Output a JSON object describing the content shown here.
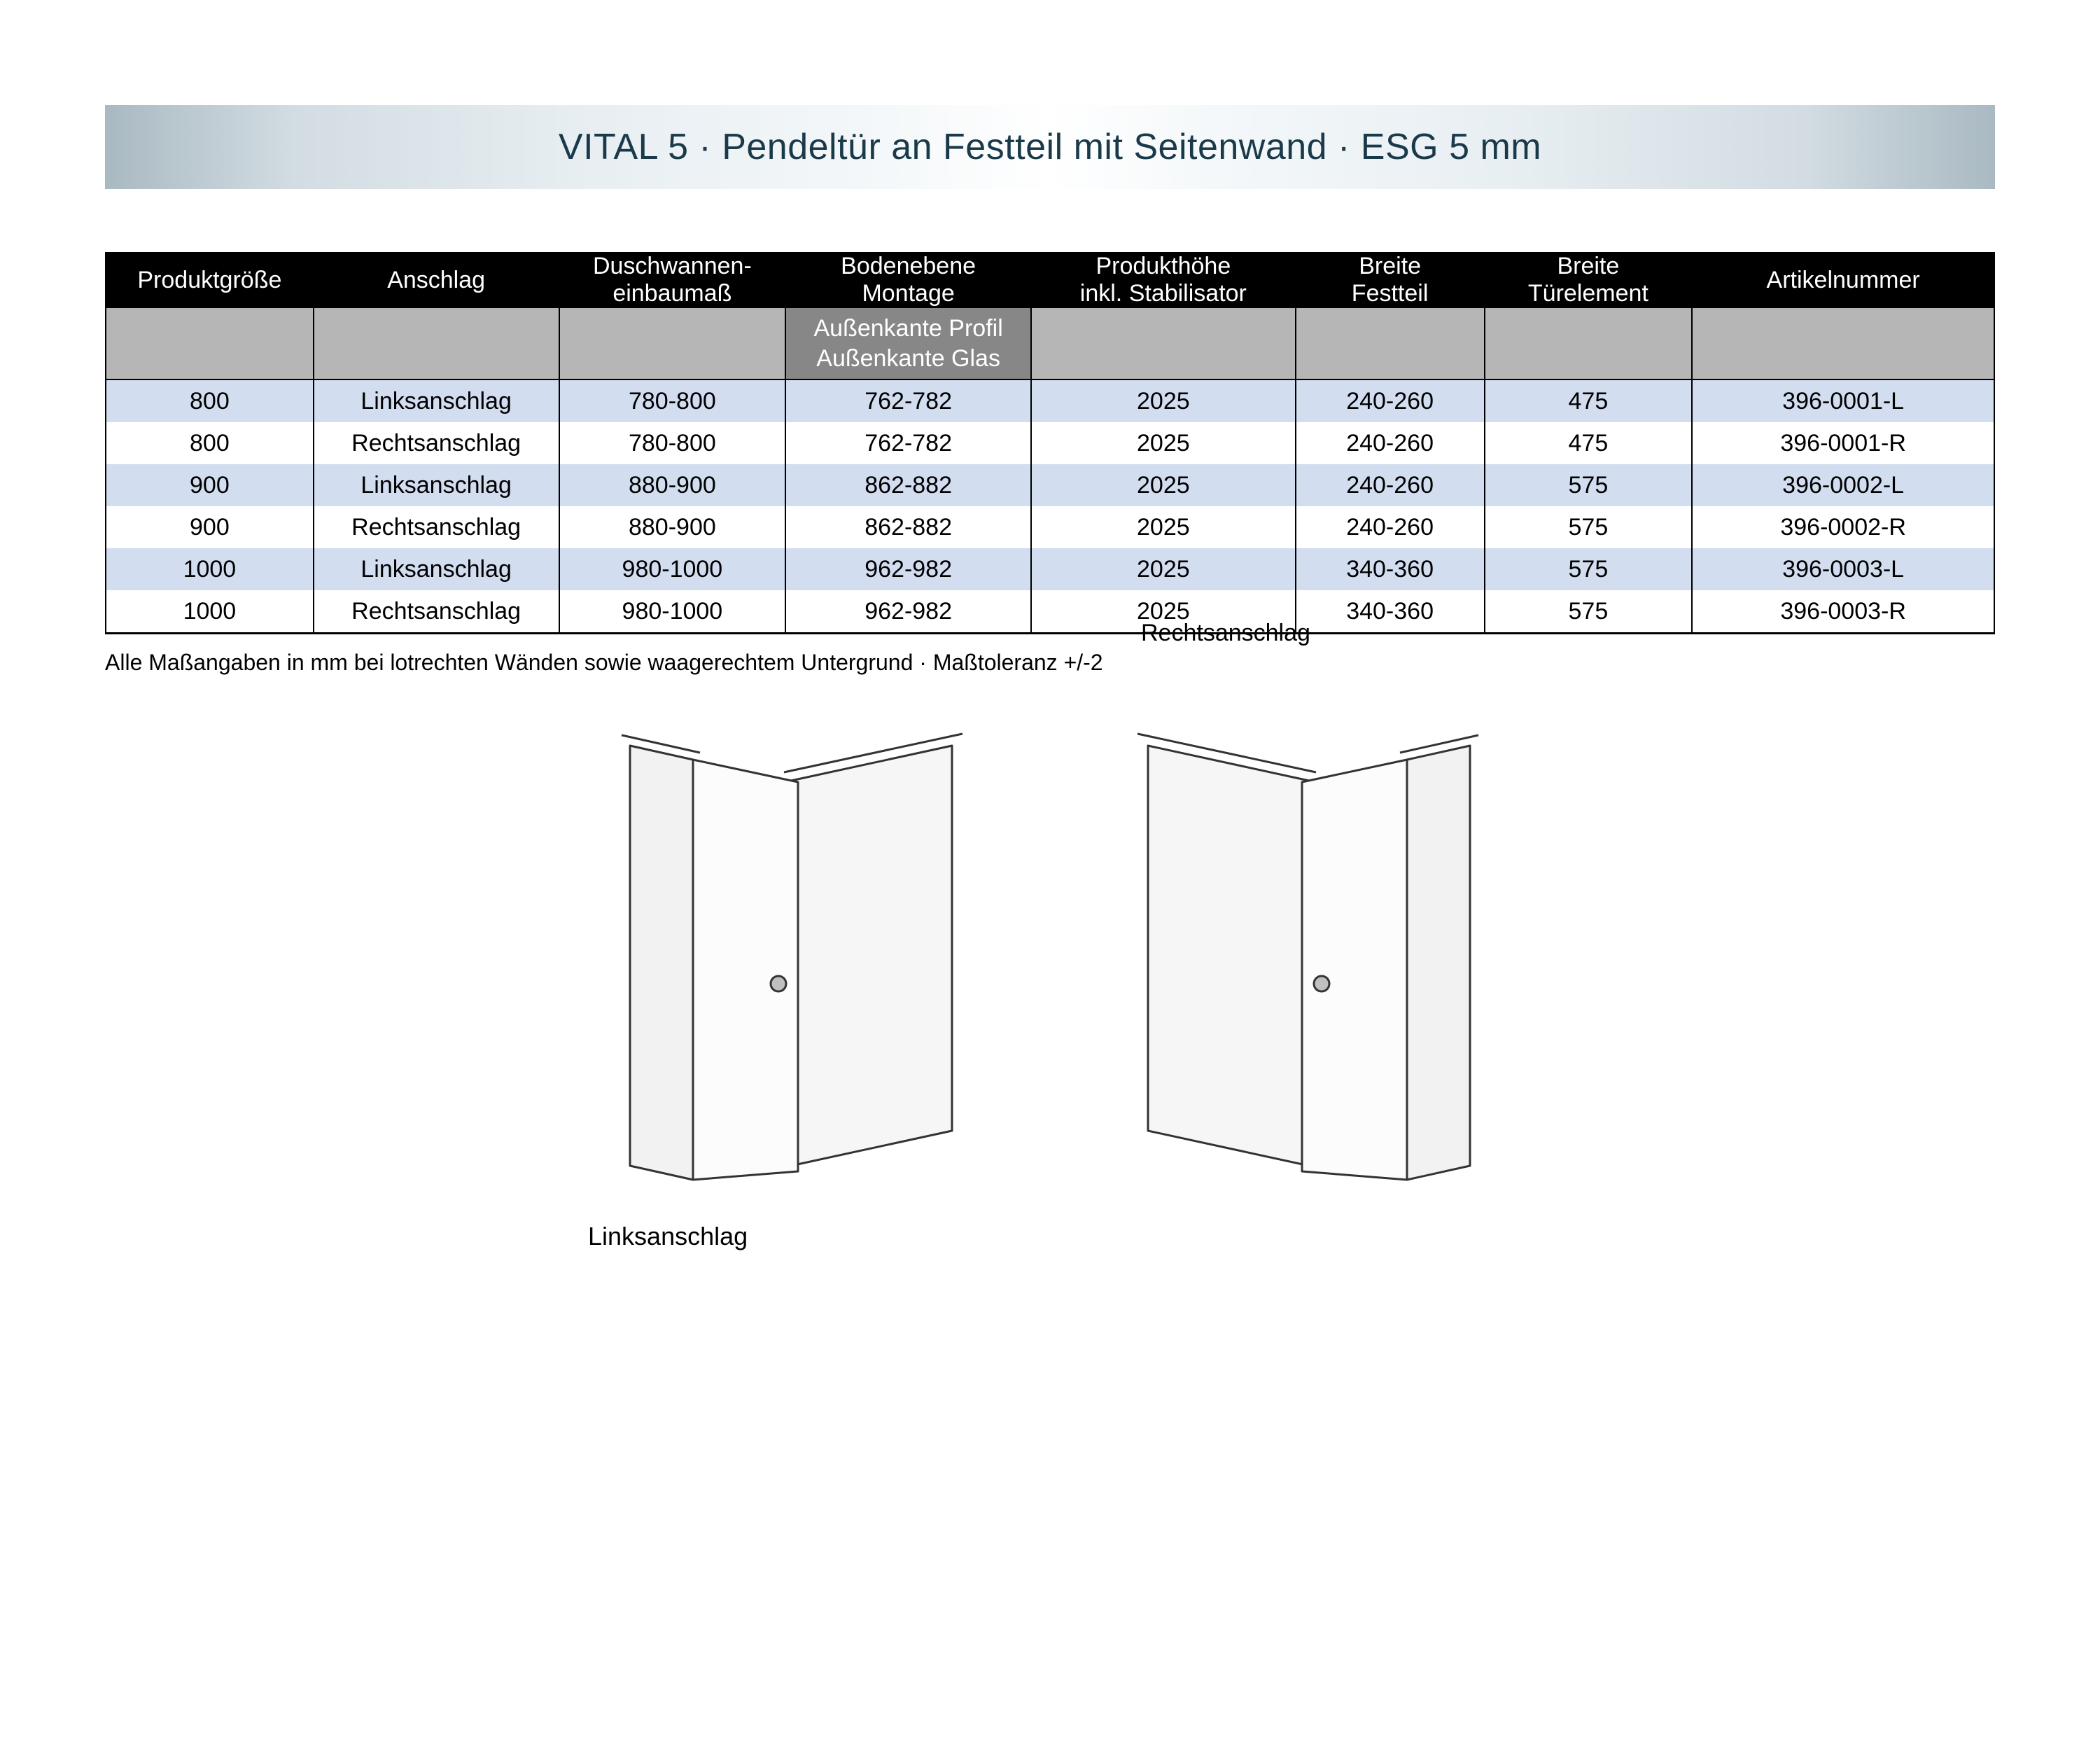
{
  "title": "VITAL 5 · Pendeltür an Festteil mit Seitenwand · ESG 5 mm",
  "columns": [
    {
      "l1": "",
      "l2": "Produktgröße",
      "w": 11
    },
    {
      "l1": "",
      "l2": "Anschlag",
      "w": 13
    },
    {
      "l1": "Duschwannen-",
      "l2": "einbaumaß",
      "w": 12
    },
    {
      "l1": "Bodenebene",
      "l2": "Montage",
      "w": 13
    },
    {
      "l1": "Produkthöhe",
      "l2": "inkl. Stabilisator",
      "w": 14
    },
    {
      "l1": "Breite",
      "l2": "Festteil",
      "w": 10
    },
    {
      "l1": "Breite",
      "l2": "Türelement",
      "w": 11
    },
    {
      "l1": "",
      "l2": "Artikelnummer",
      "w": 16
    }
  ],
  "subrow_highlight": {
    "line1": "Außenkante Profil",
    "line2": "Außenkante Glas"
  },
  "rows": [
    [
      "800",
      "Linksanschlag",
      "780-800",
      "762-782",
      "2025",
      "240-260",
      "475",
      "396-0001-L"
    ],
    [
      "800",
      "Rechtsanschlag",
      "780-800",
      "762-782",
      "2025",
      "240-260",
      "475",
      "396-0001-R"
    ],
    [
      "900",
      "Linksanschlag",
      "880-900",
      "862-882",
      "2025",
      "240-260",
      "575",
      "396-0002-L"
    ],
    [
      "900",
      "Rechtsanschlag",
      "880-900",
      "862-882",
      "2025",
      "240-260",
      "575",
      "396-0002-R"
    ],
    [
      "1000",
      "Linksanschlag",
      "980-1000",
      "962-982",
      "2025",
      "340-360",
      "575",
      "396-0003-L"
    ],
    [
      "1000",
      "Rechtsanschlag",
      "980-1000",
      "962-982",
      "2025",
      "340-360",
      "575",
      "396-0003-R"
    ]
  ],
  "footnote": "Alle Maßangaben in mm bei lotrechten Wänden sowie waagerechtem Untergrund · Maßtoleranz +/-2",
  "diagram_left_caption": "Linksanschlag",
  "diagram_right_caption": "Rechtsanschlag",
  "colors": {
    "banner_text": "#1a3a4a",
    "row_odd": "#d2ddf0",
    "row_even": "#ffffff",
    "subrow": "#b6b6b6",
    "subrow_highlight": "#878787"
  }
}
